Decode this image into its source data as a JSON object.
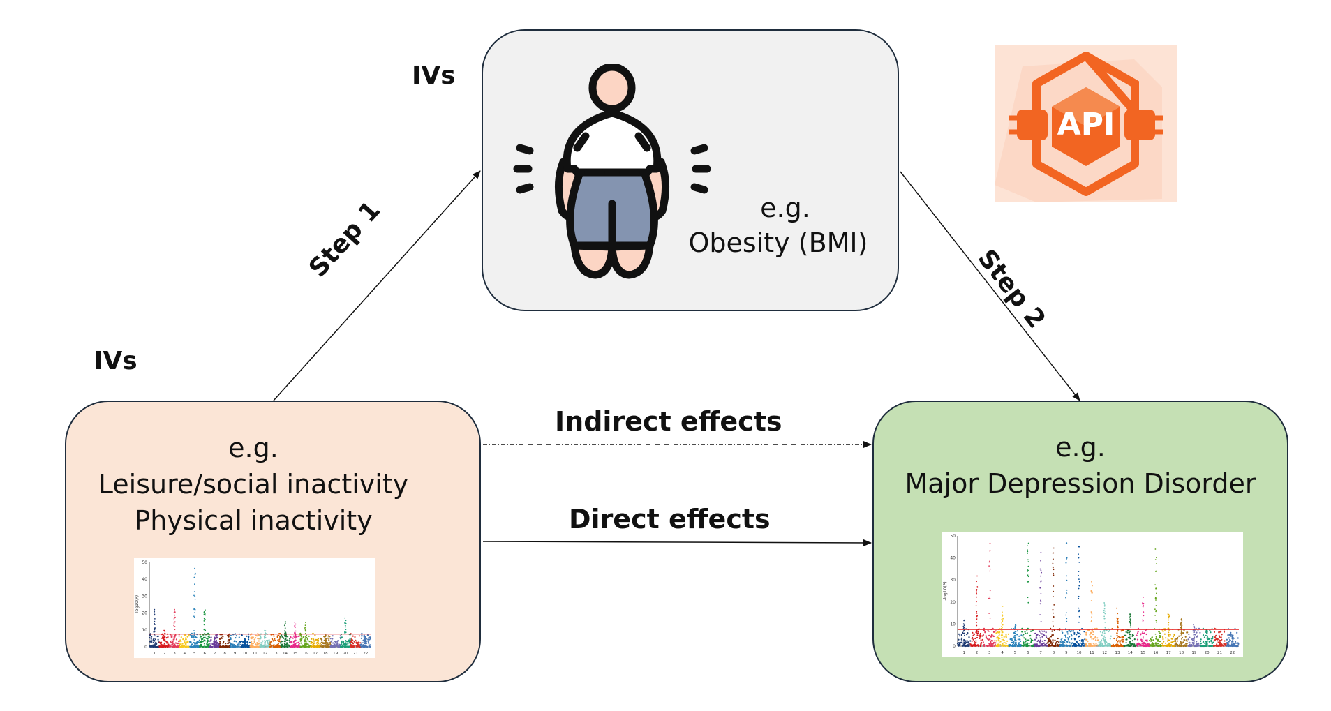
{
  "mediator": {
    "eg": "e.g.",
    "name": "Obesity (BMI)"
  },
  "exposure": {
    "eg": "e.g.",
    "line1": "Leisure/social inactivity",
    "line2": "Physical inactivity"
  },
  "outcome": {
    "eg": "e.g.",
    "name": "Major Depression Disorder"
  },
  "ivs_top": "IVs",
  "ivs_left": "IVs",
  "edges": {
    "step1": "Step 1",
    "step2": "Step 2",
    "indirect": "Indirect effects",
    "direct": "Direct effects"
  },
  "logo": {
    "text": "API"
  },
  "colors": {
    "mediator_fill": "#f1f1f1",
    "exposure_fill": "#fbe5d6",
    "outcome_fill": "#c5e0b4",
    "logo_orange": "#f26522"
  },
  "icons": {
    "mediator": "obese-person-icon",
    "logo": "api-plug-icon"
  },
  "manhattan_left": {
    "y_label": "-log10(P)",
    "y_ticks": [
      "0",
      "10",
      "20",
      "30",
      "40",
      "50"
    ],
    "x_ticks": [
      "1",
      "2",
      "3",
      "4",
      "5",
      "6",
      "7",
      "8",
      "9",
      "10",
      "11",
      "12",
      "13",
      "14",
      "15",
      "16",
      "17",
      "18",
      "19",
      "20",
      "21",
      "22"
    ]
  },
  "manhattan_right": {
    "y_label": "-log10(P)",
    "y_ticks": [
      "0",
      "10",
      "20",
      "30",
      "40",
      "50"
    ],
    "x_ticks": [
      "1",
      "2",
      "3",
      "4",
      "5",
      "6",
      "7",
      "8",
      "9",
      "10",
      "11",
      "12",
      "13",
      "14",
      "15",
      "16",
      "17",
      "18",
      "19",
      "20",
      "21",
      "22"
    ]
  }
}
